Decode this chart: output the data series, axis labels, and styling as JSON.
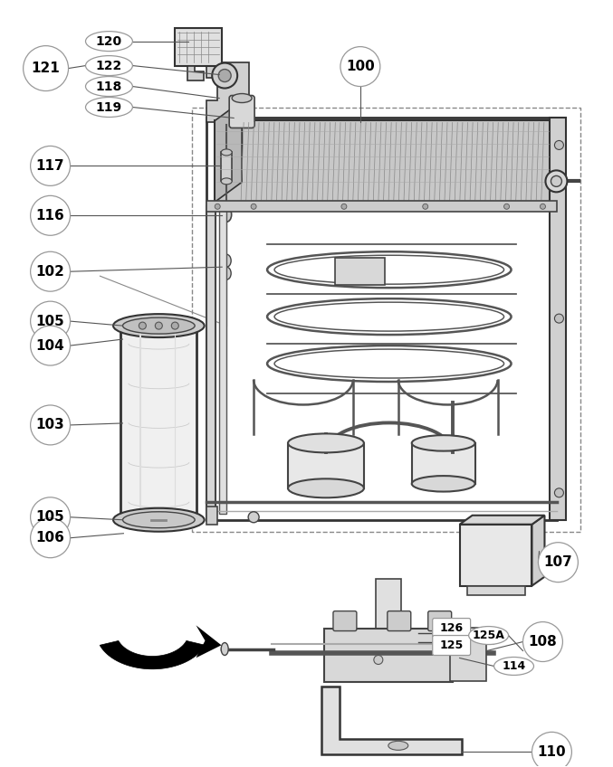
{
  "bg_color": "#ffffff",
  "fig_width": 6.77,
  "fig_height": 8.48,
  "dpi": 100,
  "label_bg": "#ffffff",
  "label_edge": "#999999",
  "line_color": "#333333",
  "part_fill": "#e8e8e8",
  "part_edge": "#333333",
  "fin_fill": "#cccccc",
  "fin_edge": "#555555",
  "coil_color": "#555555",
  "wire_color": "#555555"
}
